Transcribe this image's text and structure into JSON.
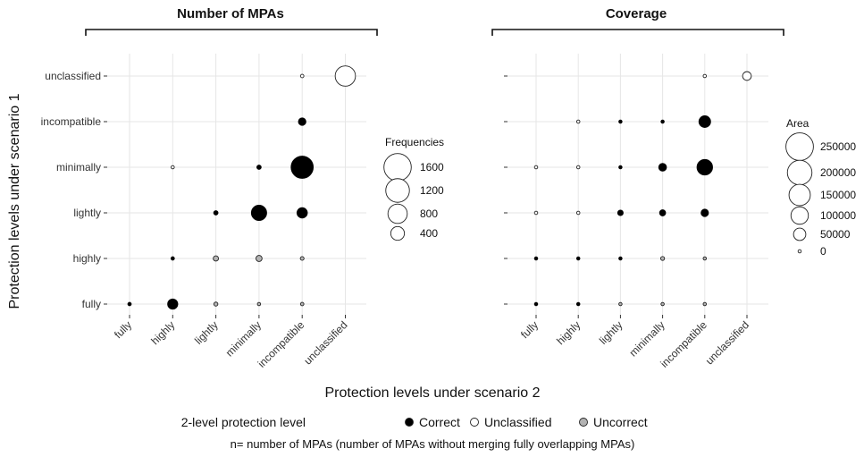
{
  "chart_data": {
    "type": "scatter",
    "ylabel": "Protection levels under scenario 1",
    "xlabel": "Protection levels under scenario 2",
    "categories": [
      "fully",
      "highly",
      "lightly",
      "minimally",
      "incompatible",
      "unclassified"
    ],
    "colors": {
      "Correct": "#000000",
      "Unclassified": "#ffffff",
      "Uncorrect": "#b3b3b3"
    },
    "panels": [
      {
        "title": "Number of MPAs",
        "legend_title": "Frequencies",
        "legend_breaks": [
          1600,
          1200,
          800,
          400
        ],
        "size_max": 1750,
        "points": [
          {
            "x": "fully",
            "y": "fully",
            "value": 25,
            "class": "Correct"
          },
          {
            "x": "highly",
            "y": "fully",
            "value": 220,
            "class": "Correct"
          },
          {
            "x": "lightly",
            "y": "fully",
            "value": 35,
            "class": "Uncorrect"
          },
          {
            "x": "minimally",
            "y": "fully",
            "value": 15,
            "class": "Uncorrect"
          },
          {
            "x": "incompatible",
            "y": "fully",
            "value": 25,
            "class": "Uncorrect"
          },
          {
            "x": "highly",
            "y": "highly",
            "value": 25,
            "class": "Correct"
          },
          {
            "x": "lightly",
            "y": "highly",
            "value": 60,
            "class": "Uncorrect"
          },
          {
            "x": "minimally",
            "y": "highly",
            "value": 80,
            "class": "Uncorrect"
          },
          {
            "x": "incompatible",
            "y": "highly",
            "value": 30,
            "class": "Uncorrect"
          },
          {
            "x": "lightly",
            "y": "lightly",
            "value": 40,
            "class": "Correct"
          },
          {
            "x": "minimally",
            "y": "lightly",
            "value": 500,
            "class": "Correct"
          },
          {
            "x": "incompatible",
            "y": "lightly",
            "value": 230,
            "class": "Correct"
          },
          {
            "x": "highly",
            "y": "minimally",
            "value": 8,
            "class": "Unclassified"
          },
          {
            "x": "minimally",
            "y": "minimally",
            "value": 40,
            "class": "Correct"
          },
          {
            "x": "incompatible",
            "y": "minimally",
            "value": 1050,
            "class": "Correct"
          },
          {
            "x": "incompatible",
            "y": "incompatible",
            "value": 120,
            "class": "Correct"
          },
          {
            "x": "incompatible",
            "y": "unclassified",
            "value": 25,
            "class": "Unclassified"
          },
          {
            "x": "unclassified",
            "y": "unclassified",
            "value": 880,
            "class": "Unclassified"
          }
        ]
      },
      {
        "title": "Coverage",
        "legend_title": "Area",
        "legend_breaks": [
          250000,
          200000,
          150000,
          100000,
          50000,
          0
        ],
        "size_max": 270000,
        "points": [
          {
            "x": "fully",
            "y": "fully",
            "value": 1500,
            "class": "Correct"
          },
          {
            "x": "highly",
            "y": "fully",
            "value": 1800,
            "class": "Correct"
          },
          {
            "x": "lightly",
            "y": "fully",
            "value": 1800,
            "class": "Uncorrect"
          },
          {
            "x": "minimally",
            "y": "fully",
            "value": 1500,
            "class": "Uncorrect"
          },
          {
            "x": "incompatible",
            "y": "fully",
            "value": 1800,
            "class": "Uncorrect"
          },
          {
            "x": "fully",
            "y": "highly",
            "value": 1300,
            "class": "Correct"
          },
          {
            "x": "highly",
            "y": "highly",
            "value": 2500,
            "class": "Correct"
          },
          {
            "x": "lightly",
            "y": "highly",
            "value": 2500,
            "class": "Correct"
          },
          {
            "x": "minimally",
            "y": "highly",
            "value": 5000,
            "class": "Uncorrect"
          },
          {
            "x": "incompatible",
            "y": "highly",
            "value": 3000,
            "class": "Uncorrect"
          },
          {
            "x": "fully",
            "y": "lightly",
            "value": 600,
            "class": "Unclassified"
          },
          {
            "x": "highly",
            "y": "lightly",
            "value": 600,
            "class": "Unclassified"
          },
          {
            "x": "lightly",
            "y": "lightly",
            "value": 10000,
            "class": "Correct"
          },
          {
            "x": "minimally",
            "y": "lightly",
            "value": 12000,
            "class": "Correct"
          },
          {
            "x": "incompatible",
            "y": "lightly",
            "value": 18000,
            "class": "Correct"
          },
          {
            "x": "fully",
            "y": "minimally",
            "value": 600,
            "class": "Unclassified"
          },
          {
            "x": "highly",
            "y": "minimally",
            "value": 600,
            "class": "Unclassified"
          },
          {
            "x": "lightly",
            "y": "minimally",
            "value": 1000,
            "class": "Correct"
          },
          {
            "x": "minimally",
            "y": "minimally",
            "value": 20000,
            "class": "Correct"
          },
          {
            "x": "incompatible",
            "y": "minimally",
            "value": 80000,
            "class": "Correct"
          },
          {
            "x": "highly",
            "y": "incompatible",
            "value": 600,
            "class": "Unclassified"
          },
          {
            "x": "lightly",
            "y": "incompatible",
            "value": 1000,
            "class": "Correct"
          },
          {
            "x": "minimally",
            "y": "incompatible",
            "value": 1000,
            "class": "Correct"
          },
          {
            "x": "incompatible",
            "y": "incompatible",
            "value": 45000,
            "class": "Correct"
          },
          {
            "x": "incompatible",
            "y": "unclassified",
            "value": 600,
            "class": "Unclassified"
          },
          {
            "x": "unclassified",
            "y": "unclassified",
            "value": 25000,
            "class": "Unclassified"
          }
        ]
      }
    ],
    "legend": {
      "title": "2-level protection level",
      "entries": [
        {
          "label": "Correct",
          "class": "Correct"
        },
        {
          "label": "Unclassified",
          "class": "Unclassified"
        },
        {
          "label": "Uncorrect",
          "class": "Uncorrect"
        }
      ],
      "placement": "bottom"
    },
    "note": "n= number of MPAs (number of MPAs without merging fully overlapping MPAs)",
    "grid": true
  }
}
